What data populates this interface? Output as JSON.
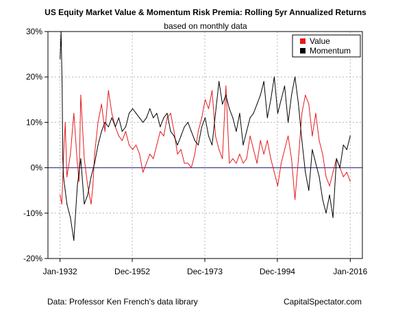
{
  "chart_data": {
    "type": "line",
    "title": "US Equity Market Value & Momentum Risk Premia: Rolling 5yr Annualized Returns",
    "subtitle": "based on monthly data",
    "xlabel": "",
    "ylabel": "",
    "xlim": [
      1928.5,
      2019.5
    ],
    "ylim": [
      -20,
      30
    ],
    "x_ticks": [
      1932,
      1952.9,
      1973.9,
      1994.9,
      2016
    ],
    "x_tick_labels": [
      "Jan-1932",
      "Dec-1952",
      "Dec-1973",
      "Dec-1994",
      "Jan-2016"
    ],
    "y_ticks": [
      -20,
      -10,
      0,
      10,
      20,
      30
    ],
    "y_tick_labels": [
      "-20%",
      "-10%",
      "0%",
      "10%",
      "20%",
      "30%"
    ],
    "grid": true,
    "zero_line": 0,
    "legend_position": "top-right",
    "series": [
      {
        "name": "Value",
        "color": "#e41a1c",
        "x": [
          1932.0,
          1932.5,
          1933.0,
          1933.5,
          1934.0,
          1935.0,
          1936.0,
          1937.0,
          1937.5,
          1938.0,
          1939.0,
          1940.0,
          1941.0,
          1941.5,
          1942.0,
          1943.0,
          1944.0,
          1945.0,
          1946.0,
          1947.0,
          1948.0,
          1949.0,
          1950.0,
          1951.0,
          1952.0,
          1953.0,
          1954.0,
          1955.0,
          1956.0,
          1957.0,
          1958.0,
          1959.0,
          1960.0,
          1961.0,
          1962.0,
          1963.0,
          1964.0,
          1965.0,
          1966.0,
          1967.0,
          1968.0,
          1969.0,
          1970.0,
          1971.0,
          1972.0,
          1973.0,
          1974.0,
          1975.0,
          1976.0,
          1977.0,
          1978.0,
          1979.0,
          1980.0,
          1981.0,
          1982.0,
          1983.0,
          1984.0,
          1985.0,
          1986.0,
          1987.0,
          1988.0,
          1989.0,
          1990.0,
          1991.0,
          1992.0,
          1993.0,
          1994.0,
          1995.0,
          1996.0,
          1997.0,
          1998.0,
          1999.0,
          2000.0,
          2001.0,
          2002.0,
          2003.0,
          2004.0,
          2005.0,
          2006.0,
          2007.0,
          2008.0,
          2009.0,
          2010.0,
          2011.0,
          2012.0,
          2013.0,
          2014.0,
          2015.0,
          2016.0
        ],
        "values": [
          -6,
          -8,
          2,
          10,
          -2,
          3,
          12,
          1,
          -3,
          16,
          2,
          -4,
          -8,
          -4,
          3,
          10,
          14,
          8,
          17,
          12,
          9,
          7,
          6,
          8,
          5,
          4,
          5,
          3,
          -1,
          1,
          3,
          2,
          5,
          8,
          7,
          11,
          12,
          8,
          3,
          4,
          1,
          1,
          0,
          3,
          8,
          11,
          15,
          13,
          17,
          7,
          4,
          2,
          18,
          1,
          2,
          1,
          3,
          1,
          2,
          7,
          4,
          1,
          6,
          3,
          6,
          2,
          -1,
          -4,
          1,
          4,
          7,
          2,
          -7,
          2,
          12,
          16,
          14,
          7,
          12,
          6,
          3,
          -2,
          -4,
          -1,
          2,
          0,
          -2,
          -1,
          -3
        ]
      },
      {
        "name": "Momentum",
        "color": "#000000",
        "x": [
          1932.0,
          1932.3,
          1932.6,
          1932.8,
          1933.0,
          1933.5,
          1934.0,
          1935.0,
          1936.0,
          1937.0,
          1938.0,
          1939.0,
          1940.0,
          1941.0,
          1942.0,
          1943.0,
          1944.0,
          1945.0,
          1946.0,
          1947.0,
          1948.0,
          1949.0,
          1950.0,
          1951.0,
          1952.0,
          1953.0,
          1954.0,
          1955.0,
          1956.0,
          1957.0,
          1958.0,
          1959.0,
          1960.0,
          1961.0,
          1962.0,
          1963.0,
          1964.0,
          1965.0,
          1966.0,
          1967.0,
          1968.0,
          1969.0,
          1970.0,
          1971.0,
          1972.0,
          1973.0,
          1974.0,
          1975.0,
          1976.0,
          1977.0,
          1978.0,
          1979.0,
          1980.0,
          1981.0,
          1982.0,
          1983.0,
          1984.0,
          1985.0,
          1986.0,
          1987.0,
          1988.0,
          1989.0,
          1990.0,
          1991.0,
          1992.0,
          1993.0,
          1994.0,
          1995.0,
          1996.0,
          1997.0,
          1998.0,
          1999.0,
          2000.0,
          2001.0,
          2002.0,
          2003.0,
          2004.0,
          2005.0,
          2006.0,
          2007.0,
          2008.0,
          2009.0,
          2010.0,
          2011.0,
          2012.0,
          2013.0,
          2014.0,
          2015.0,
          2016.0
        ],
        "values": [
          24,
          30,
          18,
          2,
          -2,
          -5,
          -8,
          -11,
          -16,
          -4,
          2,
          -8,
          -6,
          -2,
          1,
          5,
          8,
          10,
          9,
          11,
          9,
          11,
          8,
          9,
          12,
          13,
          12,
          11,
          10,
          11,
          13,
          11,
          12,
          9,
          11,
          12,
          8,
          7,
          5,
          7,
          9,
          10,
          8,
          6,
          5,
          9,
          11,
          7,
          5,
          12,
          19,
          14,
          16,
          13,
          11,
          8,
          12,
          5,
          8,
          11,
          12,
          14,
          16,
          19,
          11,
          15,
          20,
          12,
          15,
          18,
          10,
          16,
          20,
          14,
          6,
          -1,
          -5,
          4,
          1,
          -2,
          -7,
          -10,
          -6,
          -11,
          2,
          0,
          5,
          4,
          7
        ]
      }
    ]
  },
  "footer": {
    "source": "Data: Professor Ken French's data library",
    "brand": "CapitalSpectator.com"
  }
}
